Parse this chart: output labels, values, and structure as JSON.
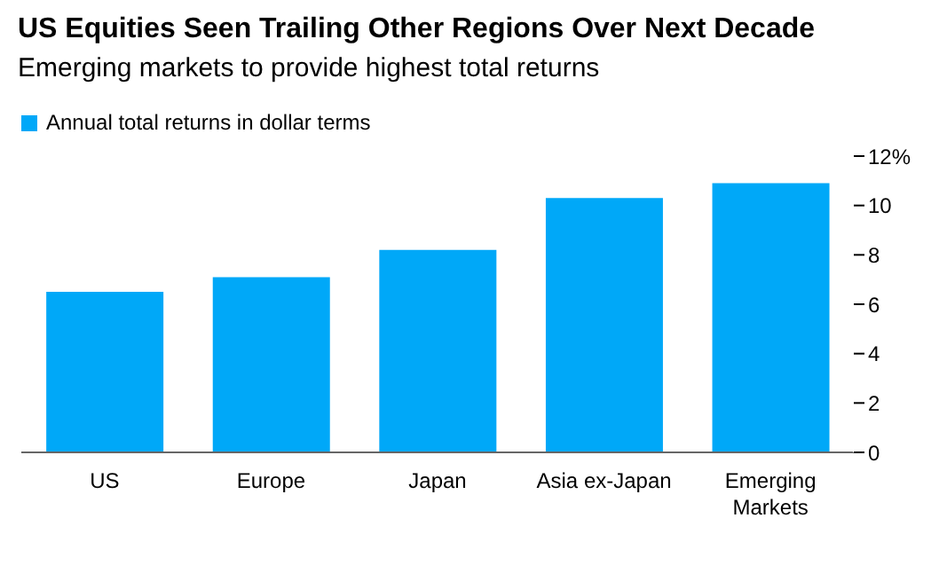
{
  "chart_data": {
    "type": "bar",
    "title": "US Equities Seen Trailing Other Regions Over Next Decade",
    "subtitle": "Emerging markets to provide highest total returns",
    "categories": [
      "US",
      "Europe",
      "Japan",
      "Asia ex-Japan",
      "Emerging Markets"
    ],
    "series": [
      {
        "name": "Annual total returns in dollar terms",
        "color": "#00a8f8",
        "values": [
          6.5,
          7.1,
          8.2,
          10.3,
          10.9
        ]
      }
    ],
    "ylim": [
      0,
      12
    ],
    "yticks": [
      0,
      2,
      4,
      6,
      8,
      10,
      {
        "value": 12,
        "label": "12%"
      }
    ],
    "legend": "top left"
  }
}
